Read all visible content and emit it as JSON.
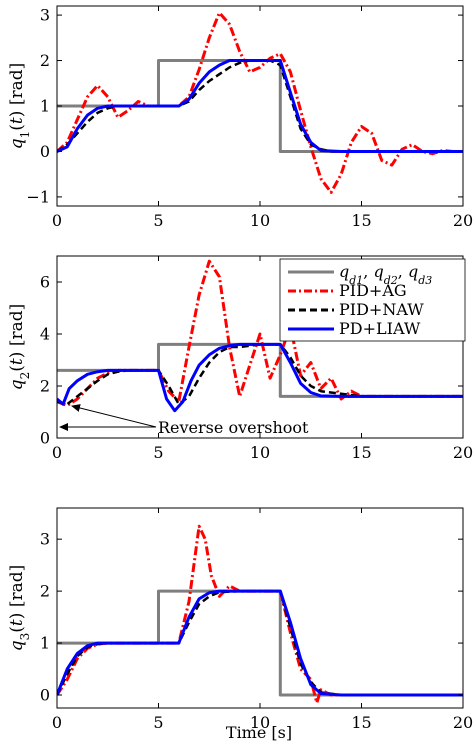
{
  "xlabel": "Time [s]",
  "legend": {
    "placement": "top-right",
    "entries": [
      {
        "series": "ref",
        "text": "q_d1, q_d2, q_d3",
        "color": "#7f7f7f"
      },
      {
        "series": "pid_ag",
        "text": "PID+AG",
        "color": "#ff0000"
      },
      {
        "series": "pid_naw",
        "text": "PID+NAW",
        "color": "#000000"
      },
      {
        "series": "pd_liaw",
        "text": "PD+LIAW",
        "color": "#0000ff"
      }
    ]
  },
  "annotation": {
    "text": "Reverse overshoot"
  },
  "chart_data": [
    {
      "type": "line",
      "ylabel": "q_1(t) [rad]",
      "xlim": [
        0,
        20
      ],
      "ylim": [
        -1.2,
        3.2
      ],
      "xticks": [
        0,
        5,
        10,
        15,
        20
      ],
      "yticks": [
        -1,
        0,
        1,
        2,
        3
      ],
      "grid": false,
      "series": [
        {
          "key": "ref",
          "color": "#7f7f7f",
          "x": [
            0,
            5,
            5,
            11,
            11,
            20
          ],
          "y": [
            1,
            1,
            2,
            2,
            0,
            0
          ]
        },
        {
          "key": "pid_ag",
          "color": "#ff0000",
          "x": [
            0,
            0.5,
            1,
            1.5,
            2,
            2.5,
            3,
            3.5,
            4,
            4.5,
            5,
            5.5,
            6,
            6.5,
            7,
            7.5,
            8,
            8.5,
            9,
            9.5,
            10,
            10.5,
            11,
            11.5,
            12,
            12.5,
            13,
            13.5,
            14,
            14.5,
            15,
            15.5,
            16,
            16.5,
            17,
            17.5,
            18,
            18.5,
            19,
            19.5,
            20
          ],
          "y": [
            0,
            0.2,
            0.7,
            1.2,
            1.45,
            1.2,
            0.75,
            0.9,
            1.1,
            1,
            1,
            1,
            1,
            1.2,
            1.8,
            2.5,
            3.05,
            2.8,
            2.2,
            1.75,
            1.85,
            2.05,
            2.15,
            1.75,
            0.9,
            0.1,
            -0.6,
            -0.9,
            -0.5,
            0.2,
            0.55,
            0.4,
            -0.2,
            -0.3,
            0.05,
            0.15,
            0,
            -0.05,
            0.02,
            0,
            0
          ]
        },
        {
          "key": "pid_naw",
          "color": "#000000",
          "x": [
            0,
            0.5,
            1,
            1.5,
            2,
            2.5,
            3,
            3.5,
            4,
            5,
            6,
            6.5,
            7,
            7.5,
            8,
            8.5,
            9,
            9.5,
            10,
            10.5,
            11,
            11.5,
            12,
            12.5,
            13,
            13.5,
            14,
            15,
            20
          ],
          "y": [
            0,
            0.15,
            0.4,
            0.65,
            0.85,
            0.95,
            1,
            1,
            1,
            1,
            1,
            1.1,
            1.35,
            1.55,
            1.7,
            1.85,
            1.95,
            2,
            2,
            2,
            1.9,
            1.2,
            0.5,
            0.15,
            0.05,
            0,
            0,
            0,
            0
          ]
        },
        {
          "key": "pd_liaw",
          "color": "#0000ff",
          "x": [
            0,
            0.5,
            1,
            1.5,
            2,
            2.5,
            3,
            4,
            5,
            6,
            6.5,
            7,
            7.5,
            8,
            8.5,
            9,
            9.5,
            10,
            10.5,
            11,
            11.5,
            12,
            12.5,
            13,
            14,
            20
          ],
          "y": [
            0,
            0.1,
            0.5,
            0.8,
            0.95,
            1,
            1,
            1,
            1,
            1,
            1.15,
            1.5,
            1.75,
            1.9,
            2,
            2,
            2,
            2,
            2,
            2,
            1.3,
            0.6,
            0.2,
            0.02,
            0,
            0
          ]
        }
      ]
    },
    {
      "type": "line",
      "ylabel": "q_2(t) [rad]",
      "xlim": [
        0,
        20
      ],
      "ylim": [
        0,
        7
      ],
      "xticks": [
        0,
        5,
        10,
        15,
        20
      ],
      "yticks": [
        0,
        2,
        4,
        6
      ],
      "grid": false,
      "series": [
        {
          "key": "ref",
          "color": "#7f7f7f",
          "x": [
            0,
            5,
            5,
            11,
            11,
            20
          ],
          "y": [
            2.6,
            2.6,
            3.6,
            3.6,
            1.6,
            1.6
          ]
        },
        {
          "key": "pid_ag",
          "color": "#ff0000",
          "x": [
            0,
            0.5,
            1,
            1.5,
            2,
            2.5,
            3,
            3.5,
            4,
            4.5,
            5,
            5.5,
            6,
            6.5,
            7,
            7.5,
            8,
            8.5,
            9,
            9.5,
            10,
            10.5,
            11,
            11.5,
            12,
            12.5,
            13,
            13.5,
            14,
            14.5,
            15,
            16,
            20
          ],
          "y": [
            1.4,
            1.25,
            1.5,
            1.9,
            2.3,
            2.5,
            2.6,
            2.6,
            2.6,
            2.6,
            2.6,
            1.8,
            1.4,
            3.5,
            5.5,
            6.8,
            6.2,
            3.5,
            1.6,
            2.8,
            4,
            2.3,
            3.2,
            4.3,
            2.4,
            2.9,
            1.9,
            2.3,
            1.5,
            1.8,
            1.6,
            1.6,
            1.6
          ]
        },
        {
          "key": "pid_naw",
          "color": "#000000",
          "x": [
            0,
            0.5,
            1,
            1.5,
            2,
            2.5,
            3,
            3.5,
            4,
            5,
            5.5,
            6,
            6.5,
            7,
            7.5,
            8,
            8.5,
            9,
            9.5,
            10,
            10.5,
            11,
            11.5,
            12,
            12.5,
            13,
            14,
            15,
            20
          ],
          "y": [
            1.4,
            1.3,
            1.6,
            1.9,
            2.2,
            2.45,
            2.55,
            2.6,
            2.6,
            2.6,
            2.0,
            1.3,
            1.6,
            2.3,
            2.9,
            3.3,
            3.5,
            3.5,
            3.55,
            3.6,
            3.6,
            3.6,
            3.1,
            2.4,
            2.0,
            1.8,
            1.7,
            1.6,
            1.6
          ]
        },
        {
          "key": "pd_liaw",
          "color": "#0000ff",
          "x": [
            0,
            0.3,
            0.6,
            1,
            1.5,
            2,
            2.5,
            3,
            4,
            5,
            5.4,
            5.8,
            6.2,
            6.6,
            7,
            7.5,
            8,
            8.5,
            9,
            9.5,
            10,
            11,
            11.5,
            12,
            12.5,
            13,
            14,
            15,
            20
          ],
          "y": [
            1.5,
            1.3,
            1.9,
            2.2,
            2.45,
            2.55,
            2.6,
            2.6,
            2.6,
            2.6,
            1.5,
            1.05,
            1.4,
            2.2,
            2.8,
            3.2,
            3.45,
            3.55,
            3.6,
            3.6,
            3.6,
            3.6,
            2.9,
            2.1,
            1.75,
            1.62,
            1.6,
            1.6,
            1.6
          ]
        }
      ]
    },
    {
      "type": "line",
      "ylabel": "q_3(t) [rad]",
      "xlim": [
        0,
        20
      ],
      "ylim": [
        -0.25,
        3.6
      ],
      "xticks": [
        0,
        5,
        10,
        15,
        20
      ],
      "yticks": [
        0,
        1,
        2,
        3
      ],
      "grid": false,
      "series": [
        {
          "key": "ref",
          "color": "#7f7f7f",
          "x": [
            0,
            5,
            5,
            11,
            11,
            20
          ],
          "y": [
            1,
            1,
            2,
            2,
            0,
            0
          ]
        },
        {
          "key": "pid_ag",
          "color": "#ff0000",
          "x": [
            0,
            0.5,
            1,
            1.5,
            2,
            2.5,
            3,
            4,
            5,
            5.5,
            6,
            6.5,
            7,
            7.3,
            7.6,
            8,
            8.5,
            9,
            10,
            11,
            11.5,
            12,
            12.5,
            12.8,
            13,
            13.5,
            14,
            20
          ],
          "y": [
            0,
            0.3,
            0.7,
            0.9,
            0.98,
            1,
            1,
            1,
            1,
            1,
            1,
            1.8,
            3.25,
            3,
            2.3,
            1.9,
            2.1,
            2,
            2,
            2,
            1.2,
            0.5,
            0.3,
            -0.15,
            0.1,
            0,
            0,
            0
          ]
        },
        {
          "key": "pid_naw",
          "color": "#000000",
          "x": [
            0,
            0.5,
            1,
            1.5,
            2,
            2.5,
            3,
            4,
            5,
            5.5,
            6,
            6.5,
            7,
            7.5,
            8,
            9,
            10,
            11,
            11.5,
            12,
            12.5,
            13,
            14,
            20
          ],
          "y": [
            0,
            0.4,
            0.75,
            0.92,
            0.98,
            1,
            1,
            1,
            1,
            1,
            1,
            1.4,
            1.75,
            1.9,
            1.98,
            2,
            2,
            2,
            1.3,
            0.6,
            0.25,
            0.05,
            0,
            0
          ]
        },
        {
          "key": "pd_liaw",
          "color": "#0000ff",
          "x": [
            0,
            0.5,
            1,
            1.5,
            2,
            2.5,
            3,
            4,
            5,
            5.5,
            6,
            6.5,
            7,
            7.5,
            8,
            9,
            10,
            11,
            11.5,
            12,
            12.5,
            13,
            14,
            20
          ],
          "y": [
            0,
            0.5,
            0.8,
            0.95,
            1,
            1,
            1,
            1,
            1,
            1,
            1,
            1.5,
            1.85,
            1.97,
            2,
            2,
            2,
            2,
            1.4,
            0.7,
            0.2,
            0.03,
            0,
            0
          ]
        }
      ]
    }
  ]
}
